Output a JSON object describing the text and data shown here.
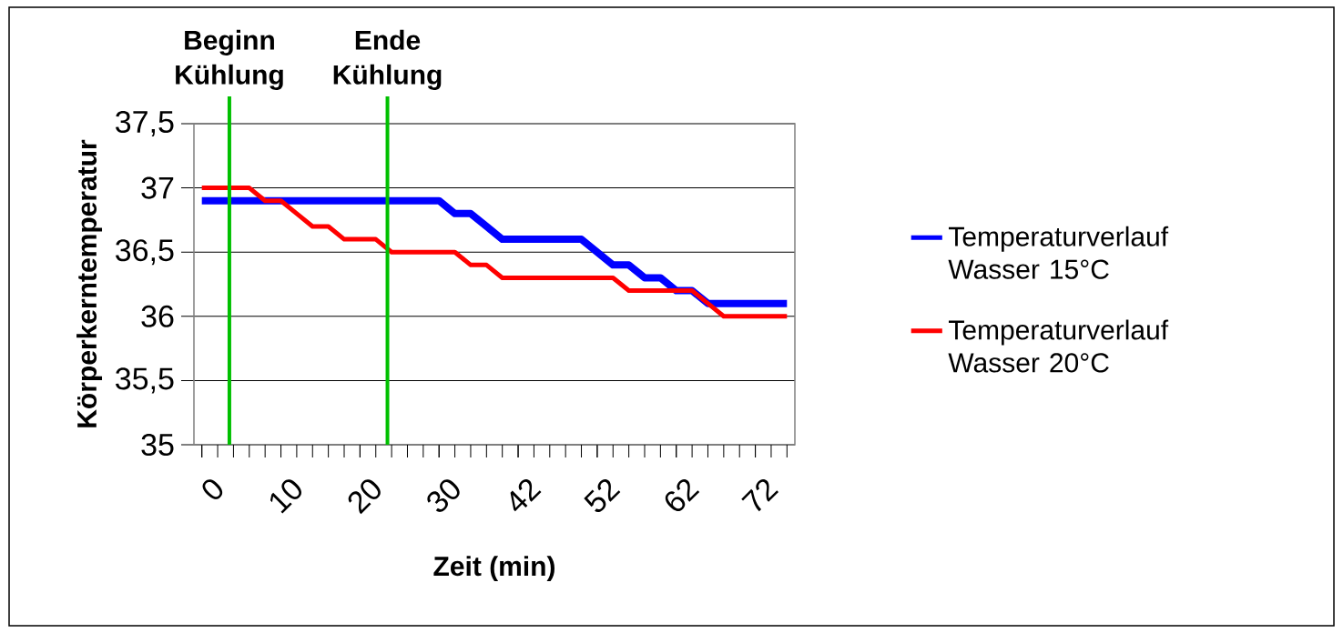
{
  "chart_data": {
    "type": "line",
    "xlabel": "Zeit (min)",
    "ylabel": "Körperkerntemperatur",
    "categories": [
      "0",
      null,
      null,
      null,
      null,
      "10",
      null,
      null,
      null,
      null,
      "20",
      null,
      null,
      null,
      null,
      "30",
      null,
      null,
      null,
      null,
      "42",
      null,
      null,
      null,
      null,
      "52",
      null,
      null,
      null,
      null,
      "62",
      null,
      null,
      null,
      null,
      "72",
      null,
      null
    ],
    "series": [
      {
        "name": "Temperaturverlauf Wasser 15°C",
        "color": "#0000ff",
        "values": [
          36.9,
          36.9,
          36.9,
          36.9,
          36.9,
          36.9,
          36.9,
          36.9,
          36.9,
          36.9,
          36.9,
          36.9,
          36.9,
          36.9,
          36.9,
          36.9,
          36.8,
          36.8,
          36.7,
          36.6,
          36.6,
          36.6,
          36.6,
          36.6,
          36.6,
          36.5,
          36.4,
          36.4,
          36.3,
          36.3,
          36.2,
          36.2,
          36.1,
          36.1,
          36.1,
          36.1,
          36.1,
          36.1
        ]
      },
      {
        "name": "Temperaturverlauf Wasser 20°C",
        "color": "#ff0000",
        "values": [
          37,
          37,
          37,
          37,
          36.9,
          36.9,
          36.8,
          36.7,
          36.7,
          36.6,
          36.6,
          36.6,
          36.5,
          36.5,
          36.5,
          36.5,
          36.5,
          36.4,
          36.4,
          36.3,
          36.3,
          36.3,
          36.3,
          36.3,
          36.3,
          36.3,
          36.3,
          36.2,
          36.2,
          36.2,
          36.2,
          36.2,
          36.1,
          36.0,
          36.0,
          36.0,
          36.0,
          36.0
        ]
      }
    ],
    "ylim": [
      35,
      37.5
    ],
    "yticks": [
      35,
      {
        "value": 35.5,
        "label": "35,5"
      },
      36,
      {
        "value": 36.5,
        "label": "36,5"
      },
      37,
      {
        "value": 37.5,
        "label": "37,5"
      }
    ],
    "grid": "y",
    "legend": "right",
    "marker": "none",
    "line_style": "solid",
    "annotations": [
      "Beginn Kühlung",
      "Ende Kühlung"
    ]
  }
}
